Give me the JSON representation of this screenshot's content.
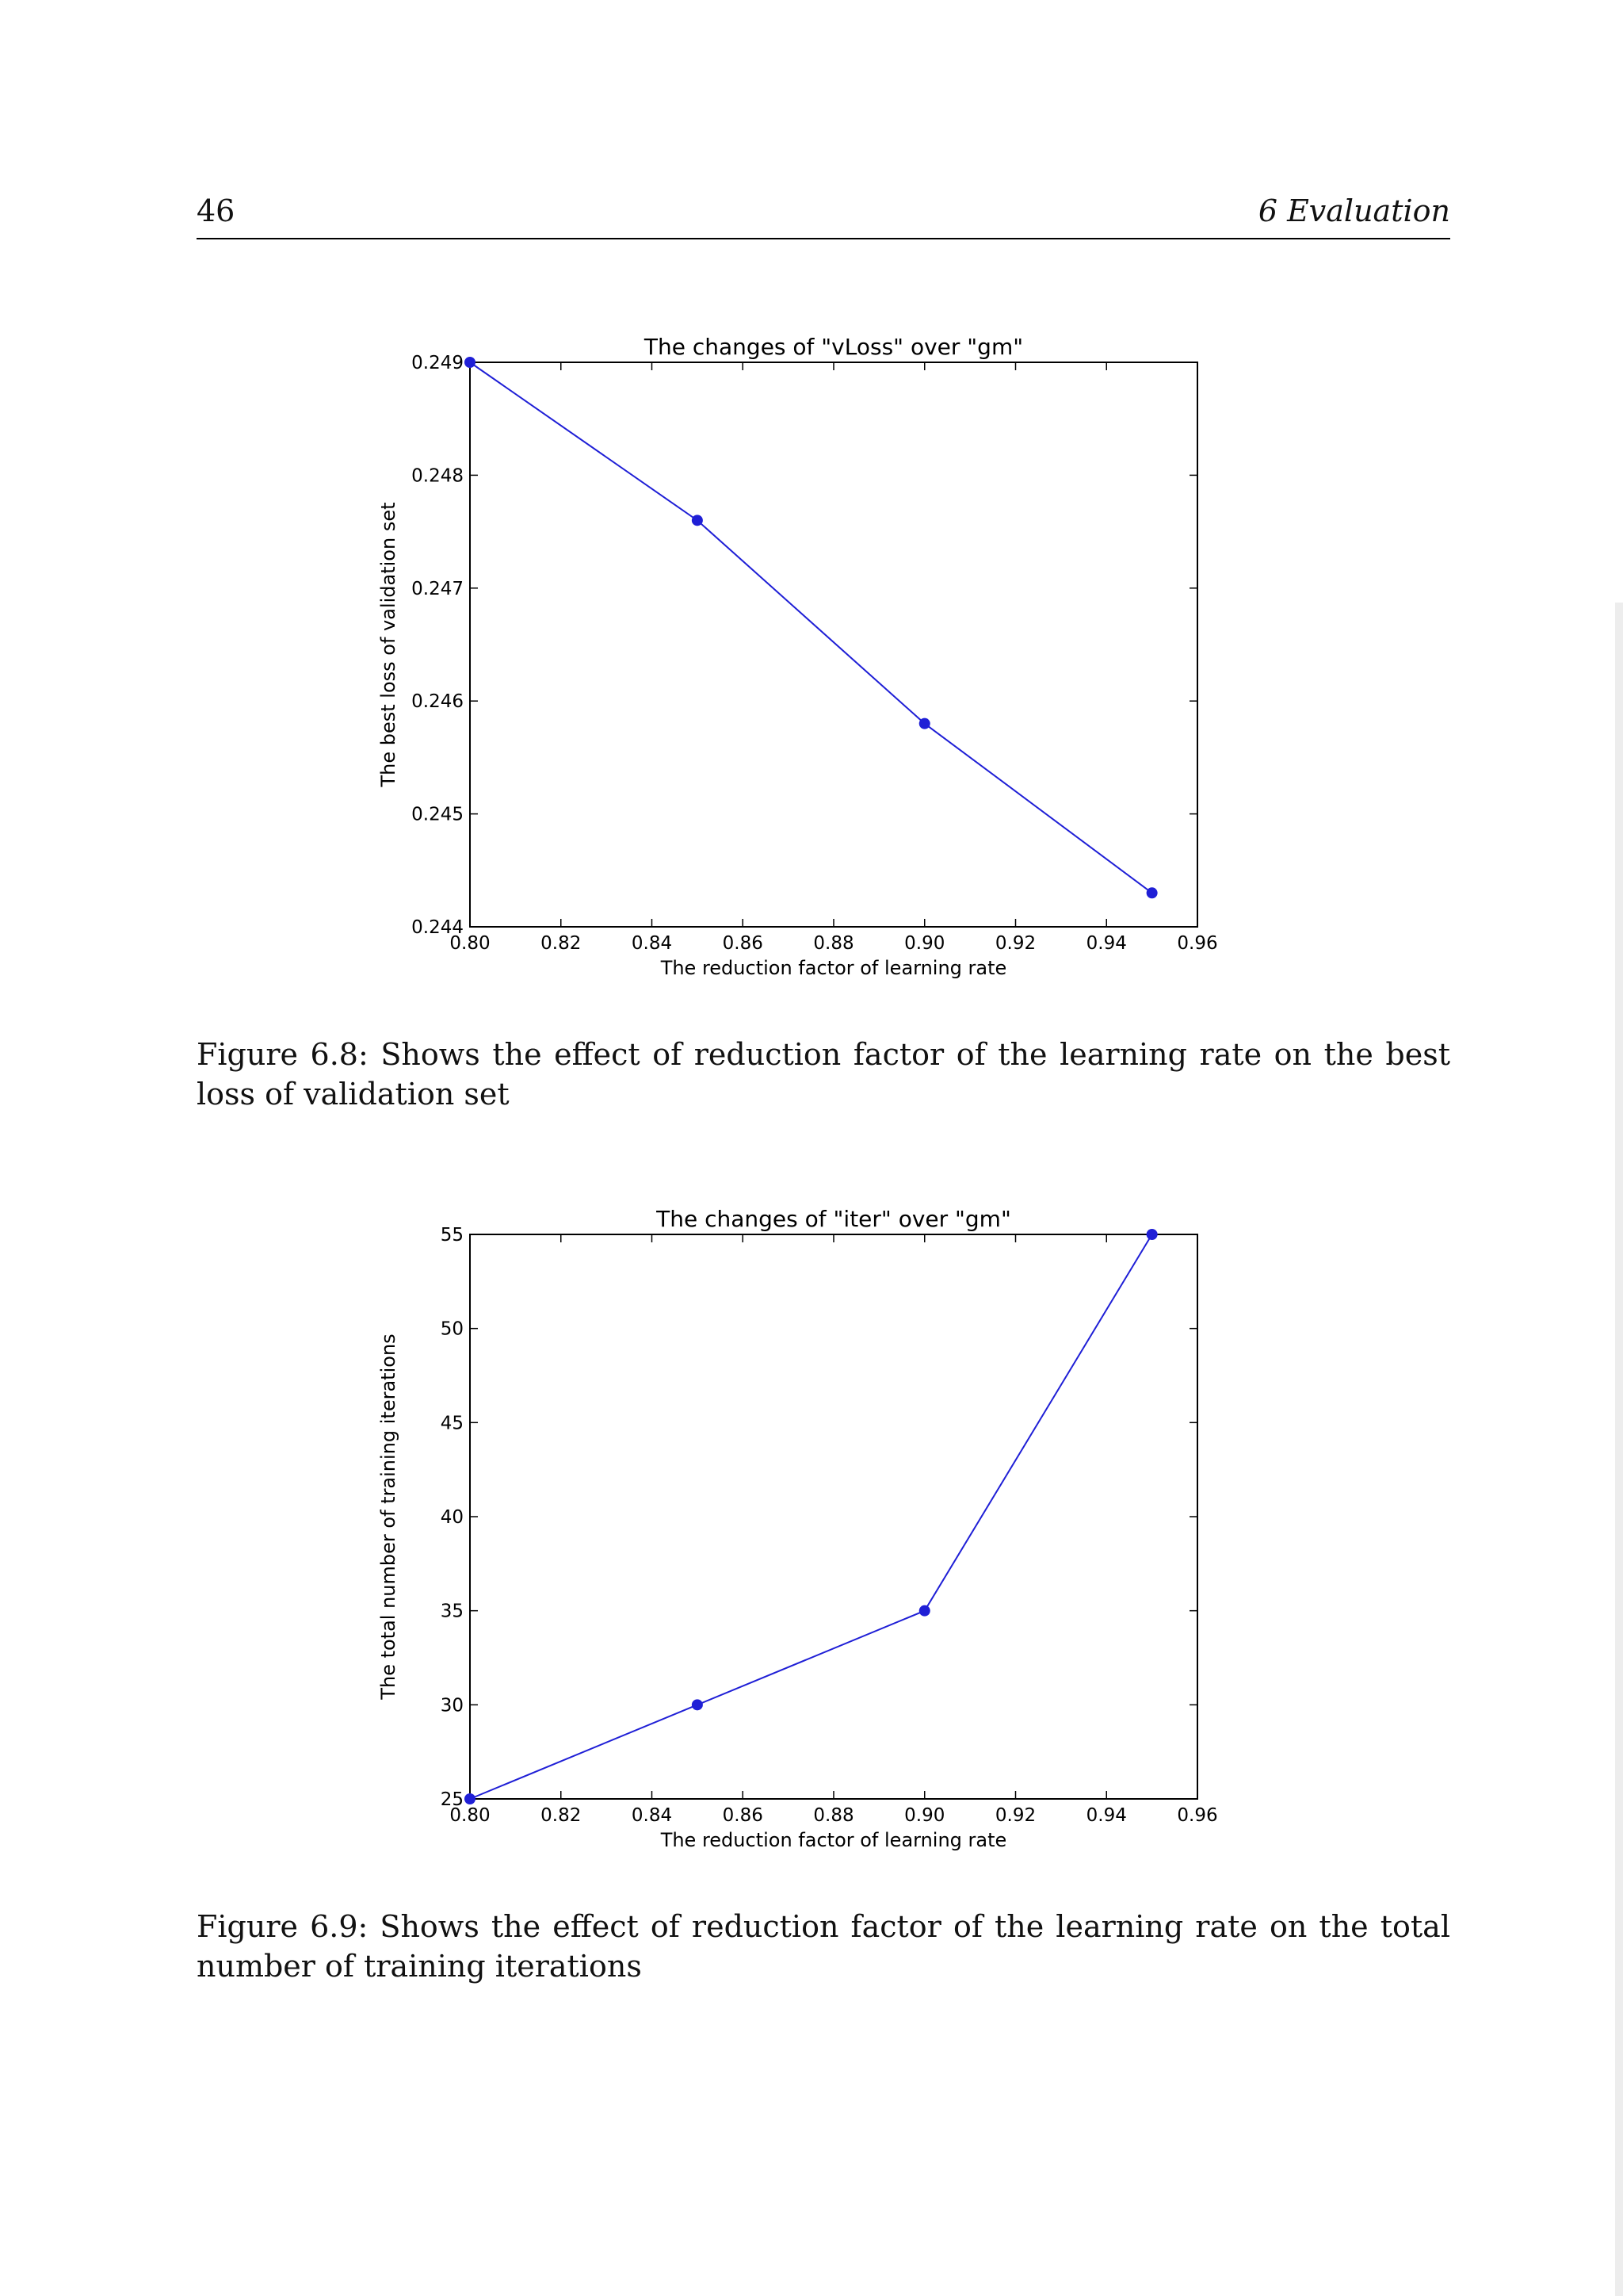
{
  "header": {
    "page_number": "46",
    "chapter": "6 Evaluation"
  },
  "figures": [
    {
      "id": "fig1",
      "caption": "Figure 6.8: Shows the effect of reduction factor of the learning rate on the best loss of validation set",
      "chart_data": {
        "type": "line",
        "title": "The changes of \"vLoss\" over \"gm\"",
        "xlabel": "The reduction factor of learning rate",
        "ylabel": "The best loss of validation set",
        "xlim": [
          0.8,
          0.96
        ],
        "ylim": [
          0.244,
          0.249
        ],
        "xticks": [
          "0.80",
          "0.82",
          "0.84",
          "0.86",
          "0.88",
          "0.90",
          "0.92",
          "0.94",
          "0.96"
        ],
        "yticks": [
          "0.244",
          "0.245",
          "0.246",
          "0.247",
          "0.248",
          "0.249"
        ],
        "x": [
          0.8,
          0.85,
          0.9,
          0.95
        ],
        "y": [
          0.249,
          0.2476,
          0.2458,
          0.2443
        ],
        "color": "#1f1fd6",
        "grid": false
      }
    },
    {
      "id": "fig2",
      "caption": "Figure 6.9: Shows the effect of reduction factor of the learning rate on the total number of training iterations",
      "chart_data": {
        "type": "line",
        "title": "The changes of \"iter\" over \"gm\"",
        "xlabel": "The reduction factor of learning rate",
        "ylabel": "The total number of training iterations",
        "xlim": [
          0.8,
          0.96
        ],
        "ylim": [
          25,
          55
        ],
        "xticks": [
          "0.80",
          "0.82",
          "0.84",
          "0.86",
          "0.88",
          "0.90",
          "0.92",
          "0.94",
          "0.96"
        ],
        "yticks": [
          "25",
          "30",
          "35",
          "40",
          "45",
          "50",
          "55"
        ],
        "x": [
          0.8,
          0.85,
          0.9,
          0.95
        ],
        "y": [
          25,
          30,
          35,
          55
        ],
        "color": "#1f1fd6",
        "grid": false
      }
    }
  ]
}
